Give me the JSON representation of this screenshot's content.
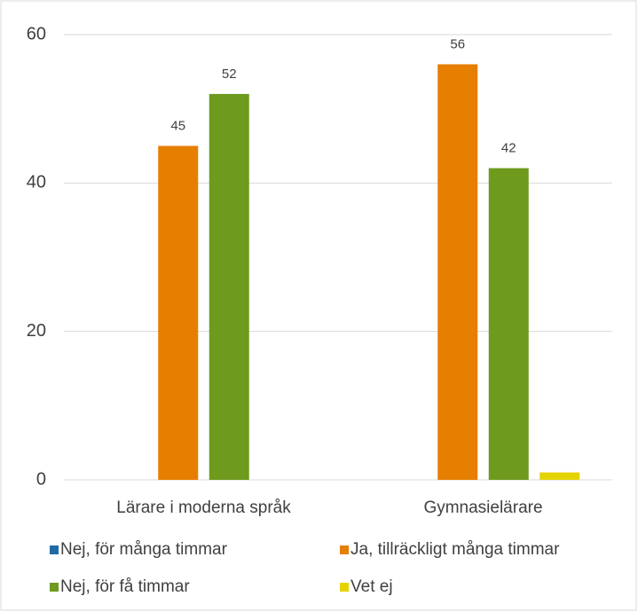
{
  "chart_data": {
    "type": "bar",
    "categories": [
      "Lärare i moderna språk",
      "Gymnasielärare"
    ],
    "series": [
      {
        "name": "Nej, för många timmar",
        "color": "#1f6aa5",
        "values": [
          0,
          0
        ],
        "show_values": false
      },
      {
        "name": "Ja, tillräckligt många timmar",
        "color": "#e67e00",
        "values": [
          45,
          56
        ],
        "show_values": true
      },
      {
        "name": "Nej, för få timmar",
        "color": "#6e9a1e",
        "values": [
          52,
          42
        ],
        "show_values": true
      },
      {
        "name": "Vet ej",
        "color": "#e5d300",
        "values": [
          0,
          1
        ],
        "show_values": false
      }
    ],
    "ylim": [
      0,
      60
    ],
    "yticks": [
      0,
      20,
      40,
      60
    ],
    "grid": true,
    "legend": "bottom"
  }
}
